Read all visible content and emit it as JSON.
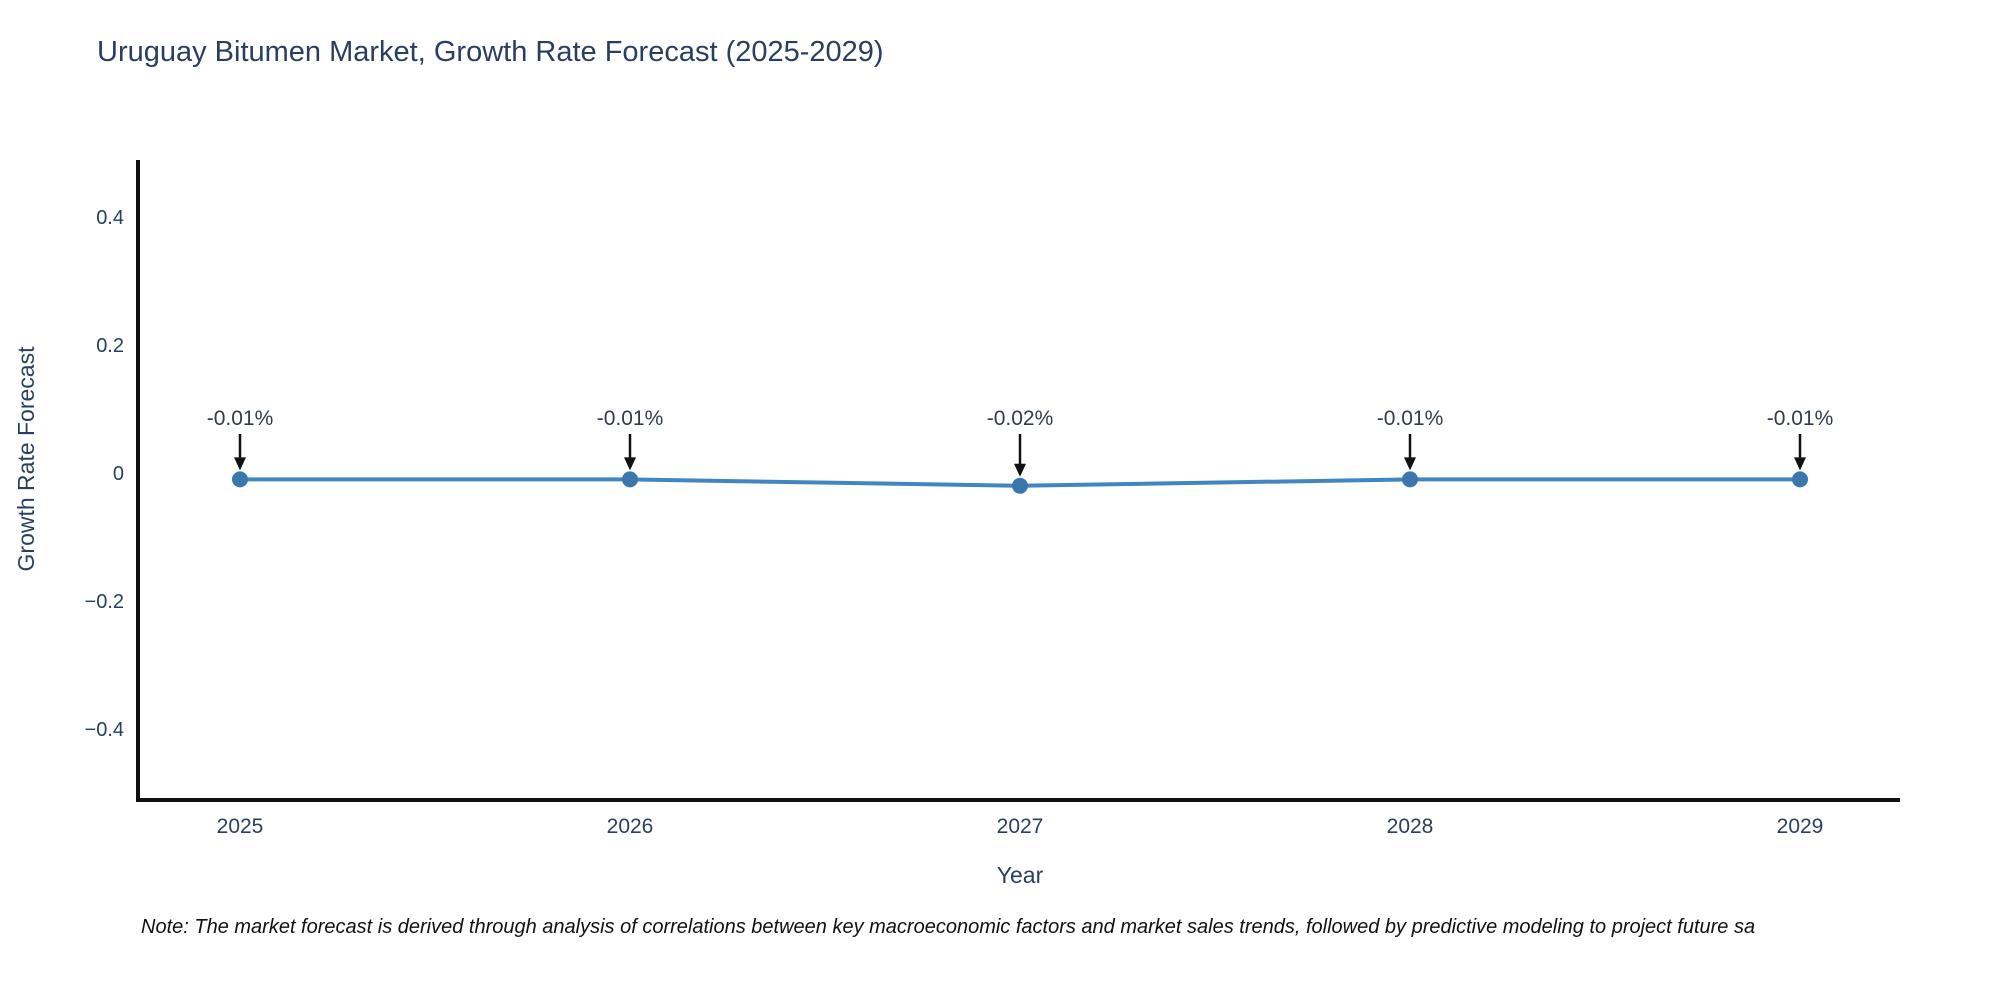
{
  "chart_data": {
    "type": "line",
    "title": "Uruguay Bitumen Market, Growth Rate Forecast (2025-2029)",
    "xlabel": "Year",
    "ylabel": "Growth Rate Forecast",
    "categories": [
      "2025",
      "2026",
      "2027",
      "2028",
      "2029"
    ],
    "values": [
      -0.01,
      -0.01,
      -0.02,
      -0.01,
      -0.01
    ],
    "point_labels": [
      "-0.01%",
      "-0.01%",
      "-0.02%",
      "-0.01%",
      "-0.01%"
    ],
    "yticks": [
      0.4,
      0.2,
      0,
      -0.2,
      -0.4
    ],
    "ytick_labels": [
      "0.4",
      "0.2",
      "0",
      "−0.2",
      "−0.4"
    ],
    "ylim": [
      -0.5,
      0.5
    ],
    "grid": false,
    "legend_position": "none",
    "line_color": "#4186c0",
    "marker_color": "#3a77ad",
    "axis_color": "#111111",
    "text_color": "#2a3f5f",
    "annotation_color": "#333b49",
    "note": "Note: The market forecast is derived through analysis of correlations between key macroeconomic factors and market sales trends, followed by predictive modeling to project future sa"
  }
}
